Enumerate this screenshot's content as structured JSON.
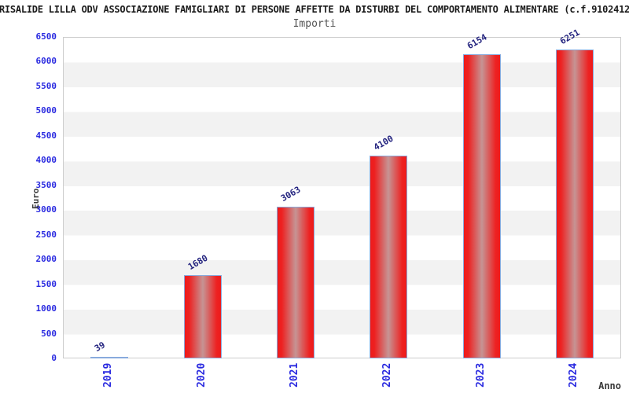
{
  "title": "RISALIDE LILLA ODV ASSOCIAZIONE FAMIGLIARI DI PERSONE AFFETTE DA DISTURBI DEL COMPORTAMENTO ALIMENTARE (c.f.9102412",
  "chart_data": {
    "type": "bar",
    "title": "Importi",
    "xlabel": "Anno",
    "ylabel": "Euro",
    "categories": [
      "2019",
      "2020",
      "2021",
      "2022",
      "2023",
      "2024"
    ],
    "values": [
      39,
      1680,
      3063,
      4100,
      6154,
      6251
    ],
    "ylim": [
      0,
      6500
    ],
    "ytick_step": 500,
    "grid": "alternating horizontal bands white/light-gray every 500 units",
    "legend_position": "none",
    "value_label_rotation_deg": -30,
    "xtick_rotation_deg": -90
  },
  "colors": {
    "tick_label_blue": "#2a2ae0",
    "value_label_navy": "#252580",
    "bar_red": "#ee1a1a",
    "bar_center_light": "#c69494",
    "bar_border_blue": "#88aadd",
    "band_gray": "#f2f2f2",
    "plot_border": "#cccccc",
    "title_color": "#1a1a1a",
    "subtitle_color": "#555555",
    "axis_title_color": "#3a3a3a"
  }
}
